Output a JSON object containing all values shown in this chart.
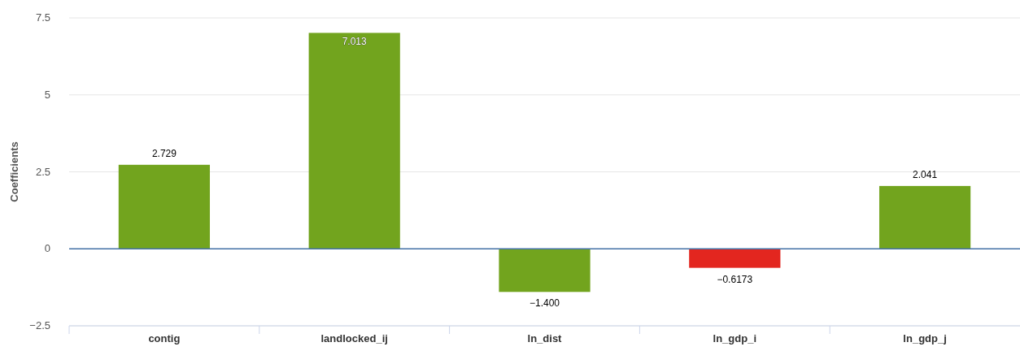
{
  "chart_data": {
    "type": "bar",
    "ylabel": "Coefficients",
    "categories": [
      "contig",
      "landlocked_ij",
      "ln_dist",
      "ln_gdp_i",
      "ln_gdp_j"
    ],
    "values": [
      2.729,
      7.013,
      -1.4,
      -0.6173,
      2.041
    ],
    "colors": [
      "#72a41e",
      "#72a41e",
      "#72a41e",
      "#e3261f",
      "#72a41e"
    ],
    "value_labels": [
      "2.729",
      "7.013",
      "−1.400",
      "−0.6173",
      "2.041"
    ],
    "ylim": [
      -2.5,
      7.5
    ],
    "yticks": [
      {
        "value": -2.5,
        "label": "−2.5"
      },
      0,
      2.5,
      5,
      7.5
    ],
    "ref_lines": [
      {
        "axis": "y",
        "value": 0,
        "color": "#4572a7"
      }
    ],
    "grid": "y"
  }
}
